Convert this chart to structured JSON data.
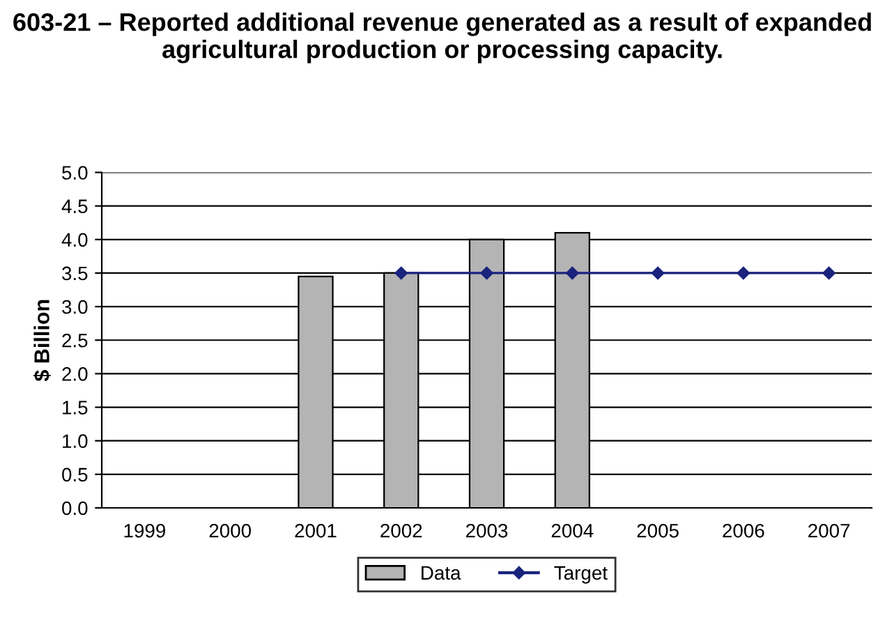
{
  "chart_data": {
    "type": "bar",
    "title": "603-21 – Reported additional revenue generated as a result of expanded agricultural production or processing capacity.",
    "ylabel": "$ Billion",
    "categories": [
      "1999",
      "2000",
      "2001",
      "2002",
      "2003",
      "2004",
      "2005",
      "2006",
      "2007"
    ],
    "series": [
      {
        "name": "Data",
        "color": "#b4b4b4",
        "values": [
          null,
          null,
          3.45,
          3.5,
          4.0,
          4.1,
          null,
          null,
          null
        ]
      },
      {
        "name": "Target",
        "type": "line",
        "color": "#1a237e",
        "marker": "diamond",
        "values": [
          null,
          null,
          null,
          3.5,
          3.5,
          3.5,
          3.5,
          3.5,
          3.5
        ]
      }
    ],
    "ylim": [
      0,
      5
    ],
    "yticks": [
      {
        "value": 0,
        "label": "0.0"
      },
      0.5,
      {
        "value": 1,
        "label": "1.0"
      },
      1.5,
      {
        "value": 2,
        "label": "2.0"
      },
      2.5,
      {
        "value": 3,
        "label": "3.0"
      },
      3.5,
      {
        "value": 4,
        "label": "4.0"
      },
      4.5,
      {
        "value": 5,
        "label": "5.0"
      }
    ],
    "grid": "y",
    "legend": "bottom"
  }
}
